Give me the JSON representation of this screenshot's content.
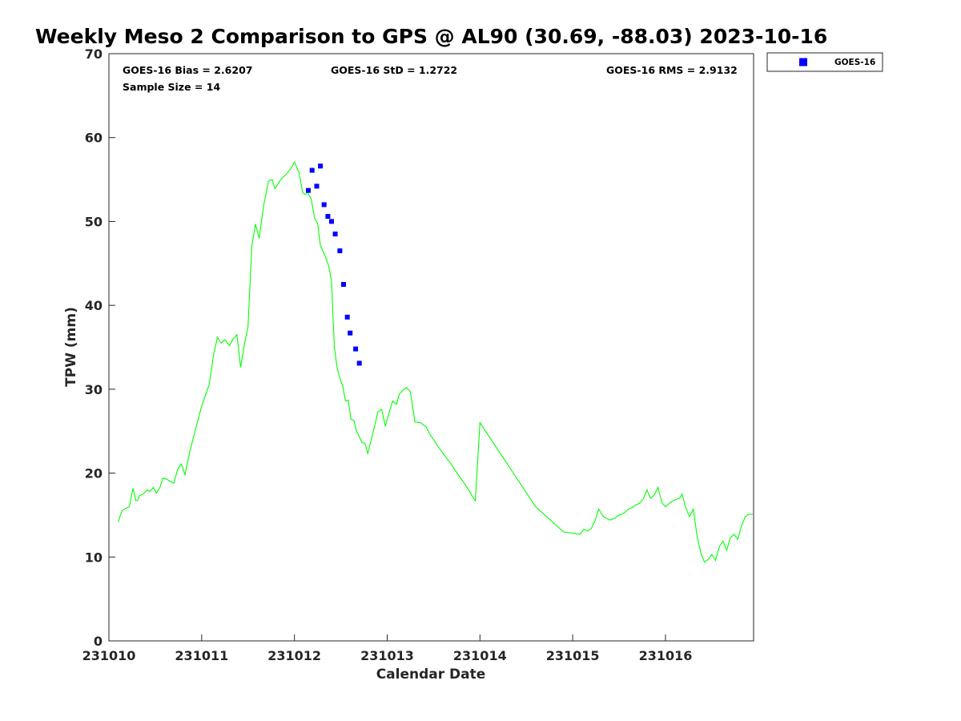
{
  "chart_data": {
    "type": "scatter",
    "title": "Weekly Meso 2 Comparison to GPS @ AL90 (30.69, -88.03) 2023-10-16",
    "xlabel": "Calendar Date",
    "ylabel": "TPW (mm)",
    "xlim": [
      231010,
      231016.95
    ],
    "ylim": [
      0,
      70
    ],
    "x_ticks": [
      {
        "value": 231010,
        "label": "231010"
      },
      {
        "value": 231011,
        "label": "231011"
      },
      {
        "value": 231012,
        "label": "231012"
      },
      {
        "value": 231013,
        "label": "231013"
      },
      {
        "value": 231014,
        "label": "231014"
      },
      {
        "value": 231015,
        "label": "231015"
      },
      {
        "value": 231016,
        "label": "231016"
      }
    ],
    "y_ticks": [
      {
        "value": 0,
        "label": "0"
      },
      {
        "value": 10,
        "label": "10"
      },
      {
        "value": 20,
        "label": "20"
      },
      {
        "value": 30,
        "label": "30"
      },
      {
        "value": 40,
        "label": "40"
      },
      {
        "value": 50,
        "label": "50"
      },
      {
        "value": 60,
        "label": "60"
      },
      {
        "value": 70,
        "label": "70"
      }
    ],
    "stats": {
      "bias": "GOES-16 Bias = 2.6207",
      "std": "GOES-16 StD = 1.2722",
      "rms": "GOES-16 RMS = 2.9132",
      "sample_size": "Sample Size = 14"
    },
    "legend": {
      "position": "outside-top-right",
      "entries": [
        "GOES-16"
      ]
    },
    "grid": false,
    "series": [
      {
        "name": "GOES-16",
        "kind": "scatter",
        "marker": "square",
        "color": "#0000ff",
        "x": [
          231012.15,
          231012.19,
          231012.24,
          231012.28,
          231012.32,
          231012.36,
          231012.4,
          231012.44,
          231012.49,
          231012.53,
          231012.57,
          231012.6,
          231012.66,
          231012.7
        ],
        "y": [
          53.7,
          56.1,
          54.2,
          56.6,
          52.0,
          50.6,
          50.0,
          48.5,
          46.5,
          42.5,
          38.6,
          36.7,
          34.8,
          33.1
        ]
      },
      {
        "kind": "line",
        "color": "#00ff00",
        "x": [
          231010.1,
          231010.14,
          231010.18,
          231010.22,
          231010.26,
          231010.29,
          231010.31,
          231010.33,
          231010.37,
          231010.41,
          231010.44,
          231010.48,
          231010.51,
          231010.55,
          231010.58,
          231010.62,
          231010.66,
          231010.7,
          231010.74,
          231010.78,
          231010.82,
          231010.87,
          231010.91,
          231011.0,
          231011.08,
          231011.13,
          231011.17,
          231011.21,
          231011.25,
          231011.3,
          231011.34,
          231011.38,
          231011.42,
          231011.46,
          231011.5,
          231011.54,
          231011.58,
          231011.62,
          231011.67,
          231011.72,
          231011.76,
          231011.79,
          231011.84,
          231011.87,
          231011.91,
          231011.96,
          231012.0,
          231012.05,
          231012.09,
          231012.12,
          231012.14,
          231012.18,
          231012.22,
          231012.25,
          231012.28,
          231012.31,
          231012.34,
          231012.37,
          231012.4,
          231012.43,
          231012.46,
          231012.49,
          231012.52,
          231012.55,
          231012.58,
          231012.61,
          231012.64,
          231012.67,
          231012.7,
          231012.73,
          231012.76,
          231012.79,
          231012.82,
          231012.86,
          231012.9,
          231012.94,
          231012.98,
          231013.02,
          231013.06,
          231013.1,
          231013.13,
          231013.17,
          231013.21,
          231013.25,
          231013.3,
          231013.36,
          231013.42,
          231013.46,
          231013.5,
          231013.54,
          231013.58,
          231013.62,
          231013.66,
          231013.7,
          231013.73,
          231013.76,
          231013.8,
          231013.83,
          231013.86,
          231013.89,
          231013.92,
          231013.95,
          231014.0,
          231014.3,
          231014.6,
          231014.9,
          231015.08,
          231015.12,
          231015.16,
          231015.2,
          231015.24,
          231015.28,
          231015.33,
          231015.4,
          231015.45,
          231015.5,
          231015.55,
          231015.6,
          231015.64,
          231015.68,
          231015.72,
          231015.76,
          231015.8,
          231015.84,
          231015.88,
          231015.92,
          231015.96,
          231016.0,
          231016.05,
          231016.1,
          231016.15,
          231016.18,
          231016.22,
          231016.26,
          231016.3,
          231016.34,
          231016.38,
          231016.42,
          231016.46,
          231016.5,
          231016.54,
          231016.58,
          231016.62,
          231016.66,
          231016.7,
          231016.74,
          231016.78,
          231016.82,
          231016.86,
          231016.9,
          231016.94
        ],
        "y": [
          14.2,
          15.5,
          15.8,
          16.0,
          18.2,
          16.7,
          16.8,
          17.3,
          17.5,
          18.0,
          17.8,
          18.3,
          17.6,
          18.3,
          19.4,
          19.3,
          19.0,
          18.8,
          20.4,
          21.1,
          19.8,
          22.5,
          24.2,
          28.0,
          30.5,
          34.2,
          36.2,
          35.5,
          35.9,
          35.2,
          36.0,
          36.5,
          32.6,
          35.3,
          37.5,
          47.0,
          49.7,
          48.0,
          52.0,
          54.8,
          55.0,
          53.9,
          54.8,
          55.2,
          55.6,
          56.3,
          57.1,
          55.8,
          53.4,
          53.2,
          53.5,
          52.7,
          50.3,
          49.8,
          47.1,
          46.4,
          45.6,
          44.7,
          42.8,
          35.0,
          32.6,
          31.3,
          30.4,
          28.6,
          28.7,
          26.4,
          26.3,
          25.0,
          24.3,
          23.6,
          23.6,
          22.3,
          23.6,
          25.4,
          27.3,
          27.6,
          25.6,
          27.2,
          28.6,
          28.2,
          29.4,
          29.9,
          30.2,
          29.7,
          26.1,
          26.0,
          25.5,
          24.6,
          24.0,
          23.3,
          22.7,
          22.1,
          21.5,
          20.9,
          20.4,
          19.9,
          19.3,
          18.8,
          18.3,
          17.8,
          17.2,
          16.7,
          26.0,
          21.0,
          16.0,
          13.0,
          12.7,
          13.3,
          13.1,
          13.4,
          14.3,
          15.7,
          14.8,
          14.4,
          14.6,
          15.0,
          15.2,
          15.7,
          15.9,
          16.2,
          16.4,
          16.9,
          18.0,
          17.0,
          17.4,
          18.3,
          16.5,
          16.0,
          16.5,
          16.8,
          17.0,
          17.5,
          15.8,
          14.8,
          15.7,
          12.6,
          10.5,
          9.4,
          9.7,
          10.3,
          9.6,
          11.2,
          11.9,
          10.8,
          12.3,
          12.7,
          12.1,
          13.7,
          14.8,
          15.1,
          15.1
        ]
      }
    ]
  }
}
